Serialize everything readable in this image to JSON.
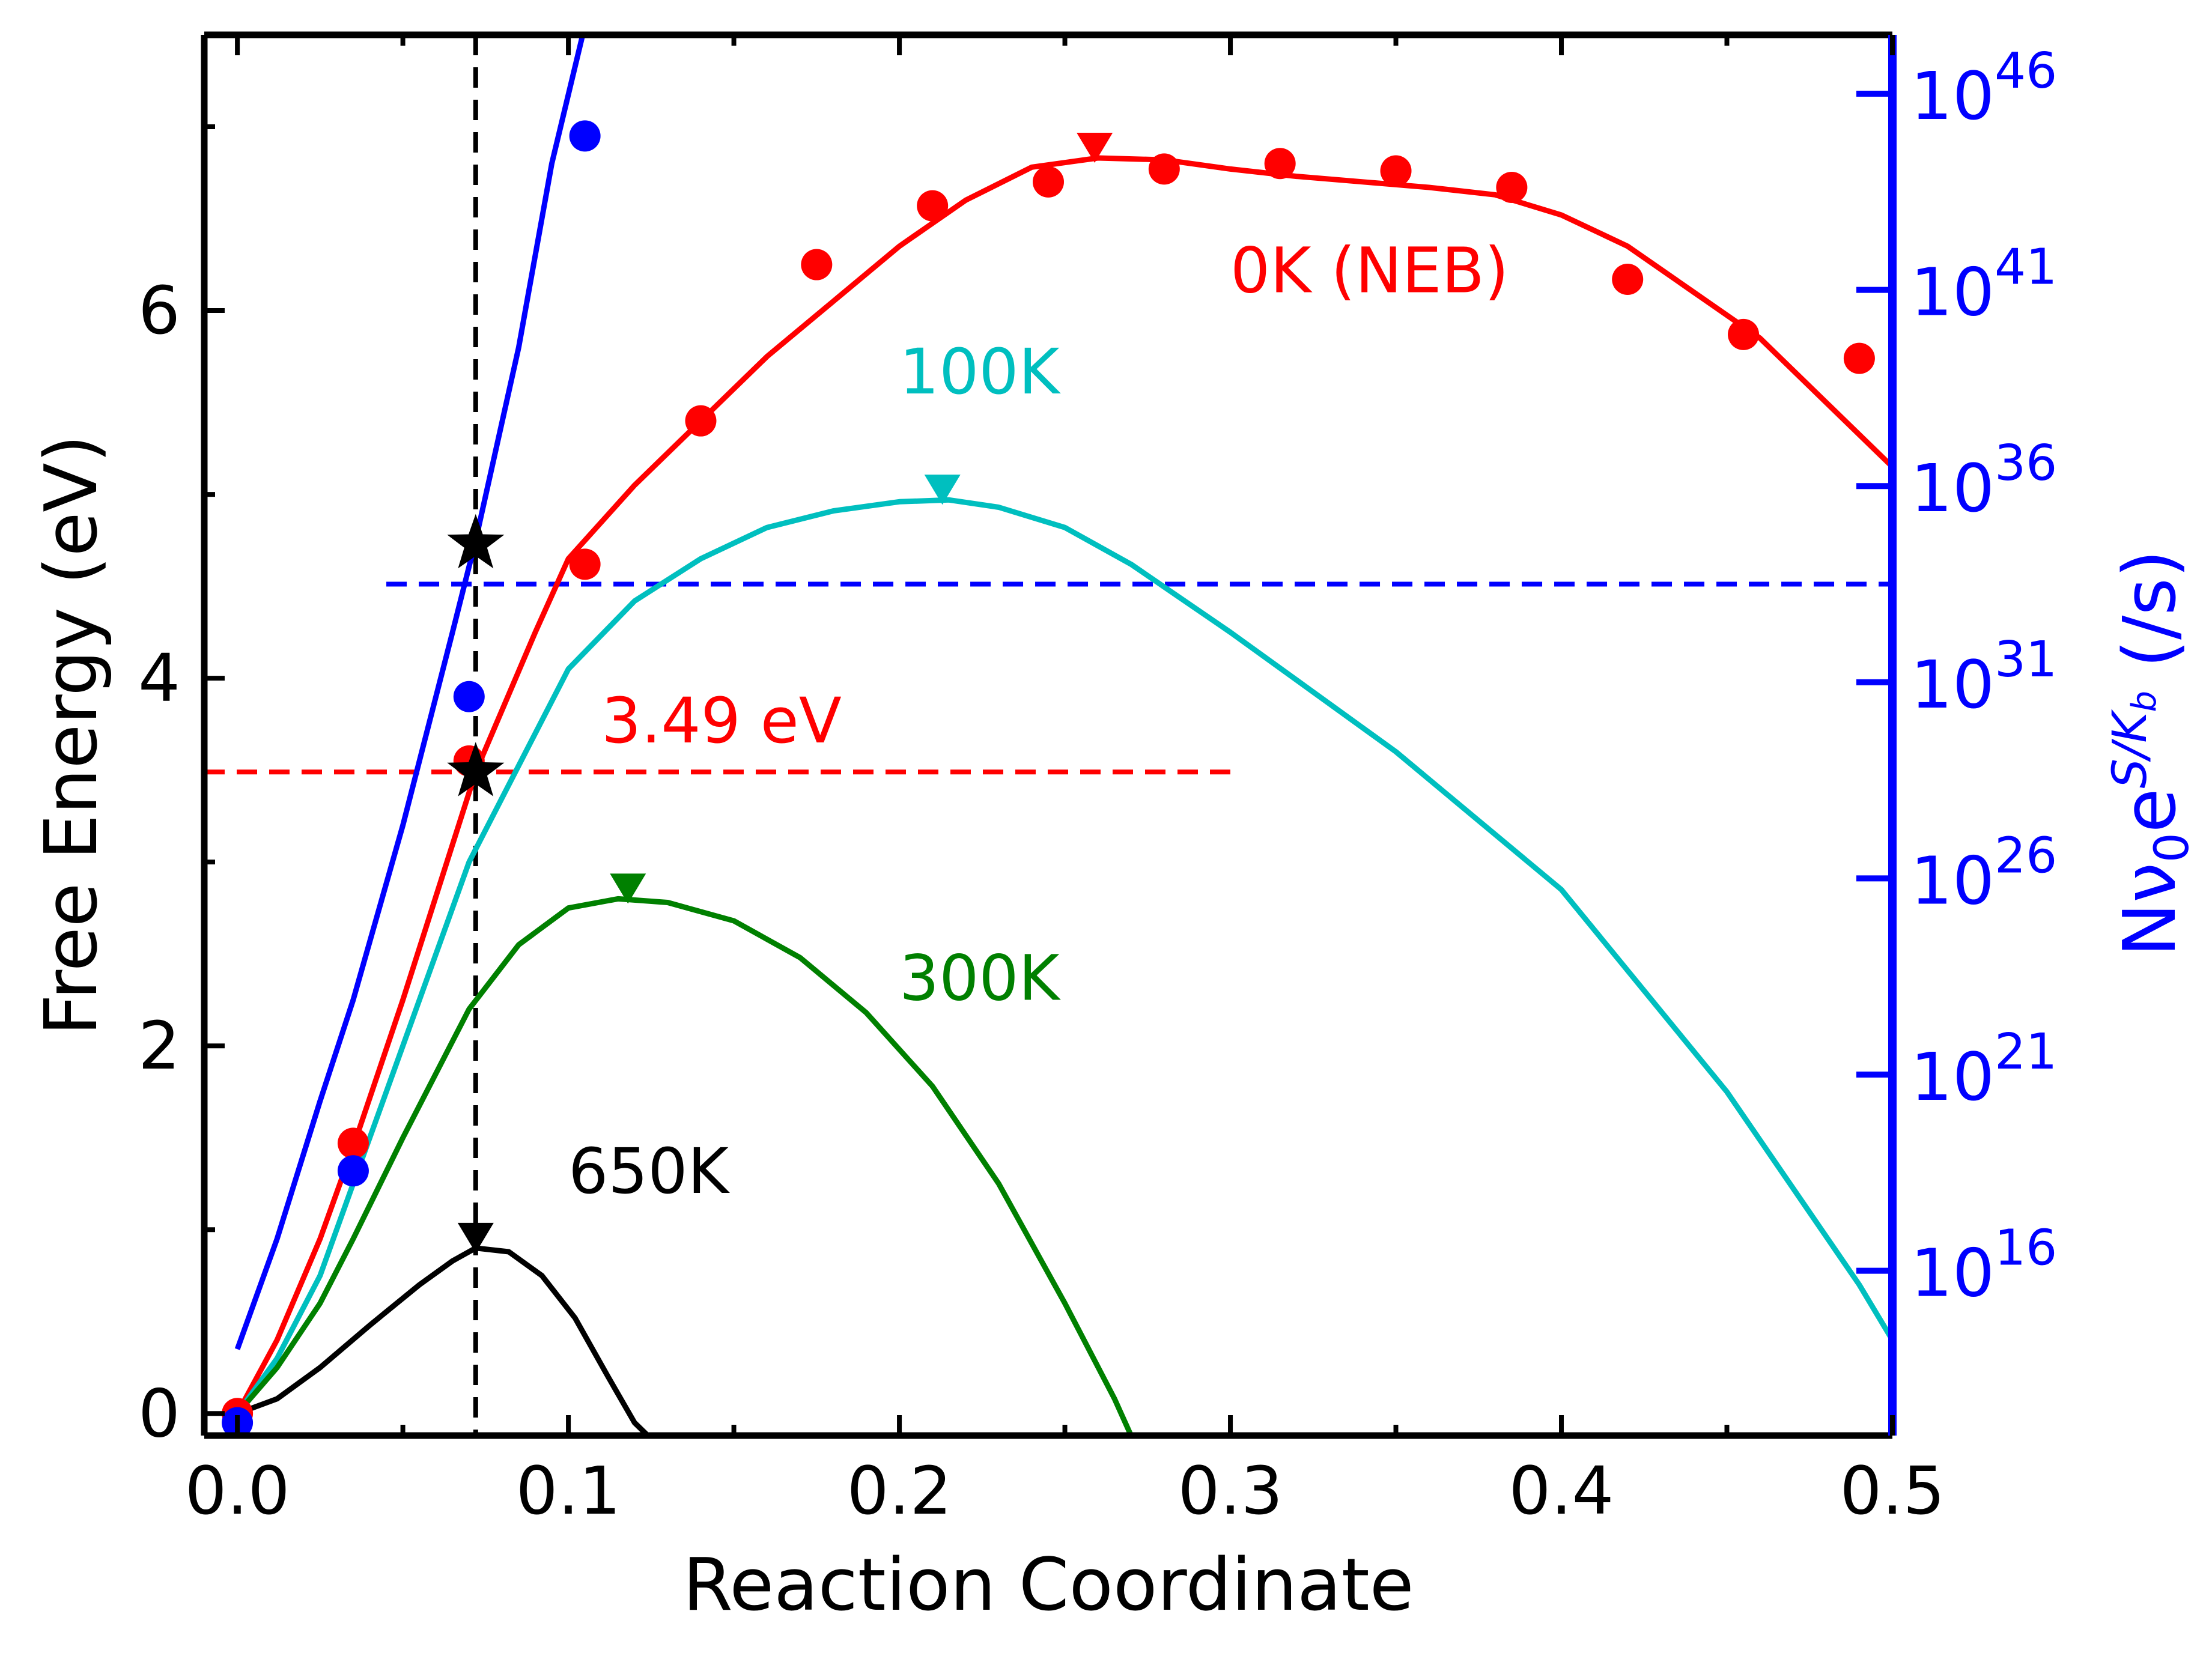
{
  "chart_data": {
    "type": "line",
    "xlabel": "Reaction Coordinate",
    "ylabel": "Free Energy (eV)",
    "y2label_parts": {
      "base": "Nν",
      "sub0": "0",
      "e": "e",
      "sup_S": "S/K",
      "sup_sub": "b",
      "unit": " (/s)"
    },
    "xlim": [
      -0.01,
      0.5
    ],
    "ylim": [
      -0.12,
      7.5
    ],
    "y2_log_range": [
      11.8,
      47.5
    ],
    "xticks": [
      0.0,
      0.1,
      0.2,
      0.3,
      0.4,
      0.5
    ],
    "xtick_labels": [
      "0.0",
      "0.1",
      "0.2",
      "0.3",
      "0.4",
      "0.5"
    ],
    "yticks": [
      0,
      2,
      4,
      6
    ],
    "ytick_labels": [
      "0",
      "2",
      "4",
      "6"
    ],
    "y2ticks_exp": [
      16,
      21,
      26,
      31,
      36,
      41,
      46
    ],
    "y2tick_base": "10",
    "y2tick_exps": [
      "16",
      "21",
      "26",
      "31",
      "36",
      "41",
      "46"
    ],
    "vline_x": 0.072,
    "series": [
      {
        "name": "0K (NEB)",
        "color": "#ff0000",
        "axis": "left",
        "line": [
          [
            0.0,
            0.0
          ],
          [
            0.012,
            0.4
          ],
          [
            0.025,
            0.95
          ],
          [
            0.035,
            1.45
          ],
          [
            0.05,
            2.25
          ],
          [
            0.072,
            3.49
          ],
          [
            0.09,
            4.25
          ],
          [
            0.1,
            4.65
          ],
          [
            0.12,
            5.05
          ],
          [
            0.14,
            5.4
          ],
          [
            0.16,
            5.75
          ],
          [
            0.18,
            6.05
          ],
          [
            0.2,
            6.35
          ],
          [
            0.22,
            6.6
          ],
          [
            0.24,
            6.78
          ],
          [
            0.26,
            6.83
          ],
          [
            0.28,
            6.82
          ],
          [
            0.3,
            6.77
          ],
          [
            0.32,
            6.73
          ],
          [
            0.34,
            6.7
          ],
          [
            0.36,
            6.67
          ],
          [
            0.38,
            6.63
          ],
          [
            0.4,
            6.52
          ],
          [
            0.42,
            6.35
          ],
          [
            0.44,
            6.1
          ],
          [
            0.46,
            5.85
          ],
          [
            0.48,
            5.5
          ],
          [
            0.5,
            5.15
          ]
        ],
        "points": [
          [
            0.0,
            0.0
          ],
          [
            0.035,
            1.47
          ],
          [
            0.07,
            3.55
          ],
          [
            0.105,
            4.62
          ],
          [
            0.14,
            5.4
          ],
          [
            0.175,
            6.25
          ],
          [
            0.21,
            6.57
          ],
          [
            0.245,
            6.7
          ],
          [
            0.28,
            6.77
          ],
          [
            0.315,
            6.8
          ],
          [
            0.35,
            6.76
          ],
          [
            0.385,
            6.67
          ],
          [
            0.42,
            6.17
          ],
          [
            0.455,
            5.87
          ],
          [
            0.49,
            5.74
          ]
        ],
        "max_marker": [
          0.259,
          6.83
        ]
      },
      {
        "name": "100K",
        "color": "#00bfbf",
        "axis": "left",
        "line": [
          [
            0.0,
            0.0
          ],
          [
            0.012,
            0.3
          ],
          [
            0.025,
            0.75
          ],
          [
            0.035,
            1.25
          ],
          [
            0.05,
            2.0
          ],
          [
            0.07,
            3.0
          ],
          [
            0.09,
            3.7
          ],
          [
            0.1,
            4.05
          ],
          [
            0.12,
            4.42
          ],
          [
            0.14,
            4.65
          ],
          [
            0.16,
            4.82
          ],
          [
            0.18,
            4.91
          ],
          [
            0.2,
            4.96
          ],
          [
            0.215,
            4.97
          ],
          [
            0.23,
            4.93
          ],
          [
            0.25,
            4.82
          ],
          [
            0.27,
            4.62
          ],
          [
            0.3,
            4.25
          ],
          [
            0.35,
            3.6
          ],
          [
            0.4,
            2.85
          ],
          [
            0.45,
            1.75
          ],
          [
            0.49,
            0.7
          ],
          [
            0.5,
            0.4
          ]
        ],
        "max_marker": [
          0.213,
          4.97
        ]
      },
      {
        "name": "300K",
        "color": "#008000",
        "axis": "left",
        "line": [
          [
            0.0,
            0.0
          ],
          [
            0.012,
            0.25
          ],
          [
            0.025,
            0.6
          ],
          [
            0.035,
            0.95
          ],
          [
            0.05,
            1.5
          ],
          [
            0.07,
            2.2
          ],
          [
            0.085,
            2.55
          ],
          [
            0.1,
            2.75
          ],
          [
            0.115,
            2.8
          ],
          [
            0.13,
            2.78
          ],
          [
            0.15,
            2.68
          ],
          [
            0.17,
            2.48
          ],
          [
            0.19,
            2.18
          ],
          [
            0.21,
            1.78
          ],
          [
            0.23,
            1.25
          ],
          [
            0.25,
            0.6
          ],
          [
            0.265,
            0.08
          ],
          [
            0.27,
            -0.12
          ]
        ],
        "max_marker": [
          0.118,
          2.8
        ]
      },
      {
        "name": "650K",
        "color": "#000000",
        "axis": "left",
        "line": [
          [
            0.0,
            0.0
          ],
          [
            0.012,
            0.08
          ],
          [
            0.025,
            0.25
          ],
          [
            0.04,
            0.48
          ],
          [
            0.055,
            0.7
          ],
          [
            0.065,
            0.83
          ],
          [
            0.072,
            0.9
          ],
          [
            0.082,
            0.88
          ],
          [
            0.092,
            0.75
          ],
          [
            0.102,
            0.52
          ],
          [
            0.112,
            0.2
          ],
          [
            0.12,
            -0.05
          ],
          [
            0.124,
            -0.12
          ]
        ],
        "max_marker": [
          0.072,
          0.9
        ]
      },
      {
        "name": "Nν0 e^(S/Kb)",
        "color": "#0000ff",
        "axis": "right",
        "line_left_units": [
          [
            0.0,
            0.35
          ],
          [
            0.012,
            0.95
          ],
          [
            0.025,
            1.7
          ],
          [
            0.035,
            2.25
          ],
          [
            0.05,
            3.2
          ],
          [
            0.065,
            4.25
          ],
          [
            0.072,
            4.75
          ],
          [
            0.085,
            5.8
          ],
          [
            0.095,
            6.8
          ],
          [
            0.105,
            7.55
          ]
        ],
        "points": [
          [
            0.0,
            -0.05
          ],
          [
            0.035,
            1.32
          ],
          [
            0.07,
            3.9
          ],
          [
            0.105,
            6.95
          ]
        ]
      }
    ],
    "hlines": [
      {
        "y": 3.49,
        "x_start": -0.01,
        "x_end": 0.3,
        "color": "#ff0000",
        "axis": "left"
      },
      {
        "y_exp": 33.5,
        "x_start": 0.045,
        "x_end": 0.5,
        "color": "#0000ff",
        "axis": "right"
      }
    ],
    "stars": [
      [
        0.072,
        3.49
      ],
      [
        0.072,
        4.73
      ]
    ],
    "annotations": [
      {
        "text": "0K (NEB)",
        "x": 0.3,
        "y": 6.1,
        "color": "#ff0000"
      },
      {
        "text": "100K",
        "x": 0.2,
        "y": 5.55,
        "color": "#00bfbf"
      },
      {
        "text": "3.49 eV",
        "x": 0.11,
        "y": 3.65,
        "color": "#ff0000"
      },
      {
        "text": "300K",
        "x": 0.2,
        "y": 2.25,
        "color": "#008000"
      },
      {
        "text": "650K",
        "x": 0.1,
        "y": 1.2,
        "color": "#000000"
      }
    ]
  }
}
